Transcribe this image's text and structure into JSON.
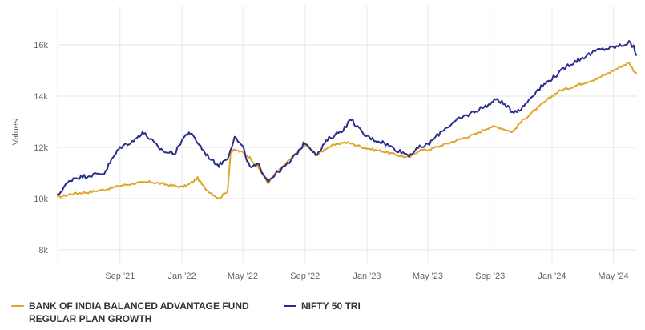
{
  "chart_data": {
    "type": "line",
    "ylabel": "Values",
    "ylim": [
      7500,
      17500
    ],
    "yticks": [
      8000,
      10000,
      12000,
      14000,
      16000
    ],
    "ytick_labels": [
      "8k",
      "10k",
      "12k",
      "14k",
      "16k"
    ],
    "xlim": [
      "2021-05-01",
      "2024-06-15"
    ],
    "xticks": [
      "2021-09-01",
      "2022-01-01",
      "2022-05-01",
      "2022-09-01",
      "2023-01-01",
      "2023-05-01",
      "2023-09-01",
      "2024-01-01",
      "2024-05-01"
    ],
    "xtick_labels": [
      "Sep '21",
      "Jan '22",
      "May '22",
      "Sep '22",
      "Jan '23",
      "May '23",
      "Sep '23",
      "Jan '24",
      "May '24"
    ],
    "grid": {
      "horizontal": true,
      "vertical": true
    },
    "legend_position": "bottom-left",
    "series": [
      {
        "name": "BANK OF INDIA BALANCED ADVANTAGE FUND\nREGULAR PLAN GROWTH",
        "color": "#e0a526",
        "x": [
          "2021-05-01",
          "2021-06-01",
          "2021-07-01",
          "2021-08-01",
          "2021-09-01",
          "2021-10-01",
          "2021-11-01",
          "2021-12-01",
          "2022-01-01",
          "2022-01-15",
          "2022-02-01",
          "2022-02-15",
          "2022-03-01",
          "2022-03-15",
          "2022-04-01",
          "2022-04-07",
          "2022-04-15",
          "2022-05-01",
          "2022-05-15",
          "2022-06-01",
          "2022-06-20",
          "2022-07-01",
          "2022-08-01",
          "2022-09-01",
          "2022-09-25",
          "2022-10-15",
          "2022-11-15",
          "2022-12-01",
          "2022-12-25",
          "2023-01-15",
          "2023-02-01",
          "2023-03-01",
          "2023-03-25",
          "2023-04-15",
          "2023-05-01",
          "2023-06-01",
          "2023-07-01",
          "2023-08-01",
          "2023-09-01",
          "2023-09-15",
          "2023-10-15",
          "2023-11-01",
          "2023-12-01",
          "2024-01-01",
          "2024-01-15",
          "2024-02-01",
          "2024-03-01",
          "2024-04-01",
          "2024-05-01",
          "2024-05-20",
          "2024-06-01",
          "2024-06-10",
          "2024-06-15"
        ],
        "y": [
          10050,
          10200,
          10250,
          10350,
          10500,
          10600,
          10650,
          10550,
          10450,
          10550,
          10800,
          10400,
          10200,
          10000,
          10300,
          11800,
          11900,
          11800,
          11600,
          11200,
          10600,
          10900,
          11500,
          12100,
          11700,
          12000,
          12200,
          12150,
          12000,
          11900,
          11850,
          11700,
          11600,
          11900,
          11900,
          12100,
          12300,
          12500,
          12800,
          12800,
          12600,
          13000,
          13500,
          14000,
          14200,
          14300,
          14500,
          14700,
          15000,
          15200,
          15300,
          15000,
          14900
        ]
      },
      {
        "name": "NIFTY 50 TRI",
        "color": "#2b2d8c",
        "x": [
          "2021-05-01",
          "2021-05-15",
          "2021-06-01",
          "2021-07-01",
          "2021-08-01",
          "2021-08-15",
          "2021-09-01",
          "2021-10-01",
          "2021-10-15",
          "2021-11-01",
          "2021-11-15",
          "2021-12-01",
          "2021-12-20",
          "2022-01-01",
          "2022-01-15",
          "2022-02-01",
          "2022-02-15",
          "2022-03-01",
          "2022-03-15",
          "2022-04-01",
          "2022-04-15",
          "2022-05-01",
          "2022-05-15",
          "2022-06-01",
          "2022-06-20",
          "2022-07-01",
          "2022-08-01",
          "2022-09-01",
          "2022-09-25",
          "2022-10-15",
          "2022-11-15",
          "2022-12-01",
          "2022-12-25",
          "2023-01-15",
          "2023-02-01",
          "2023-03-01",
          "2023-03-25",
          "2023-04-15",
          "2023-05-01",
          "2023-06-01",
          "2023-07-01",
          "2023-08-01",
          "2023-09-01",
          "2023-09-15",
          "2023-10-15",
          "2023-11-01",
          "2023-12-01",
          "2024-01-01",
          "2024-01-15",
          "2024-02-01",
          "2024-03-01",
          "2024-04-01",
          "2024-05-01",
          "2024-05-20",
          "2024-06-01",
          "2024-06-10",
          "2024-06-15"
        ],
        "y": [
          10100,
          10500,
          10800,
          10900,
          11000,
          11500,
          12000,
          12300,
          12600,
          12300,
          12000,
          11800,
          11800,
          12300,
          12600,
          12200,
          11800,
          11500,
          11300,
          11600,
          12400,
          12000,
          11200,
          11300,
          10700,
          10900,
          11400,
          12200,
          11700,
          12300,
          12700,
          13100,
          12500,
          12300,
          12200,
          11900,
          11700,
          12000,
          12100,
          12700,
          13100,
          13400,
          13700,
          13900,
          13400,
          13500,
          14200,
          14700,
          14900,
          15200,
          15500,
          15800,
          15900,
          16000,
          16100,
          15900,
          15600
        ]
      }
    ]
  }
}
